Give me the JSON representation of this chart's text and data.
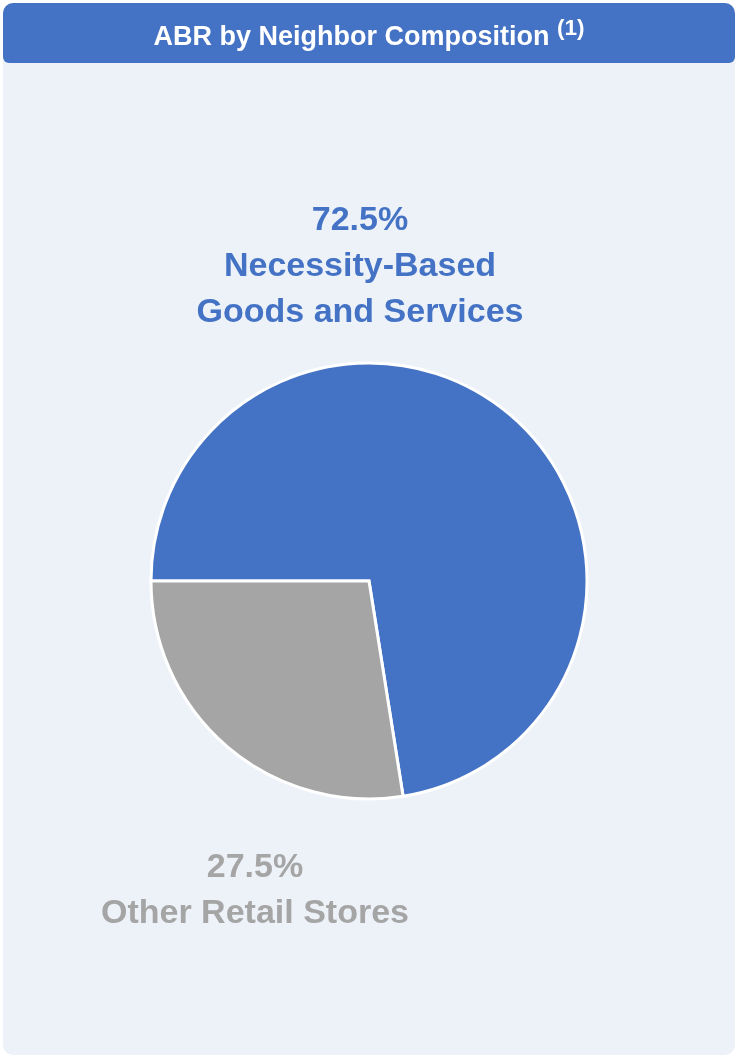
{
  "chart_data": {
    "type": "pie",
    "title": "ABR by Neighbor Composition $^{(1)}$",
    "categories": [
      "Necessity-Based Goods and Services",
      "Other Retail Stores"
    ],
    "values": [
      72.5,
      27.5
    ],
    "colors": [
      "#4472c4",
      "#a5a5a5"
    ],
    "value_labels": [
      "72.5%",
      "27.5%"
    ],
    "legend": false
  }
}
